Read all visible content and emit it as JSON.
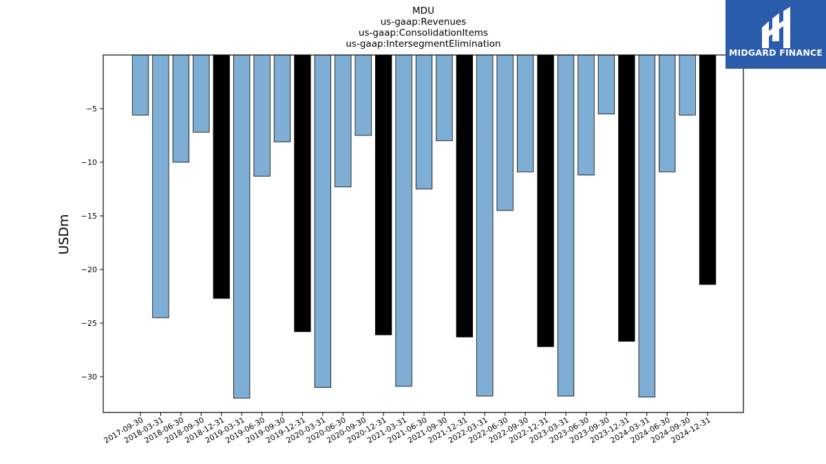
{
  "chart_data": {
    "type": "bar",
    "title_lines": [
      "MDU",
      "us-gaap:Revenues",
      "us-gaap:ConsolidationItems",
      "us-gaap:IntersegmentElimination"
    ],
    "xlabel": "",
    "ylabel": "USDm",
    "ylim": [
      -33.5,
      0
    ],
    "yticks": [
      -5,
      -10,
      -15,
      -20,
      -25,
      -30
    ],
    "grid": false,
    "categories": [
      "2017-09-30",
      "2018-03-31",
      "2018-06-30",
      "2018-09-30",
      "2018-12-31",
      "2019-03-31",
      "2019-06-30",
      "2019-09-30",
      "2019-12-31",
      "2020-03-31",
      "2020-06-30",
      "2020-09-30",
      "2020-12-31",
      "2021-03-31",
      "2021-06-30",
      "2021-09-30",
      "2021-12-31",
      "2022-03-31",
      "2022-06-30",
      "2022-09-30",
      "2022-12-31",
      "2023-03-31",
      "2023-06-30",
      "2023-09-30",
      "2023-12-31",
      "2024-03-31",
      "2024-06-30",
      "2024-09-30",
      "2024-12-31"
    ],
    "values": [
      -5.6,
      -24.5,
      -10.0,
      -7.2,
      -22.7,
      -32.0,
      -11.3,
      -8.1,
      -25.8,
      -31.0,
      -12.3,
      -7.5,
      -26.1,
      -30.9,
      -12.5,
      -8.0,
      -26.3,
      -31.8,
      -14.5,
      -10.9,
      -27.2,
      -31.8,
      -11.2,
      -5.5,
      -26.7,
      -31.9,
      -10.9,
      -5.6,
      -21.4
    ],
    "bar_colors": {
      "quarter": "#7eaed3",
      "year_end": "#000000"
    },
    "highlight": [
      "normal",
      "normal",
      "normal",
      "normal",
      "year_end",
      "normal",
      "normal",
      "normal",
      "year_end",
      "normal",
      "normal",
      "normal",
      "year_end",
      "normal",
      "normal",
      "normal",
      "year_end",
      "normal",
      "normal",
      "normal",
      "year_end",
      "normal",
      "normal",
      "normal",
      "year_end",
      "normal",
      "normal",
      "normal",
      "year_end"
    ]
  },
  "brand": {
    "name": "MIDGARD FINANCE",
    "bg_color": "#2b5bab",
    "icon": "midgard-logo-icon"
  }
}
